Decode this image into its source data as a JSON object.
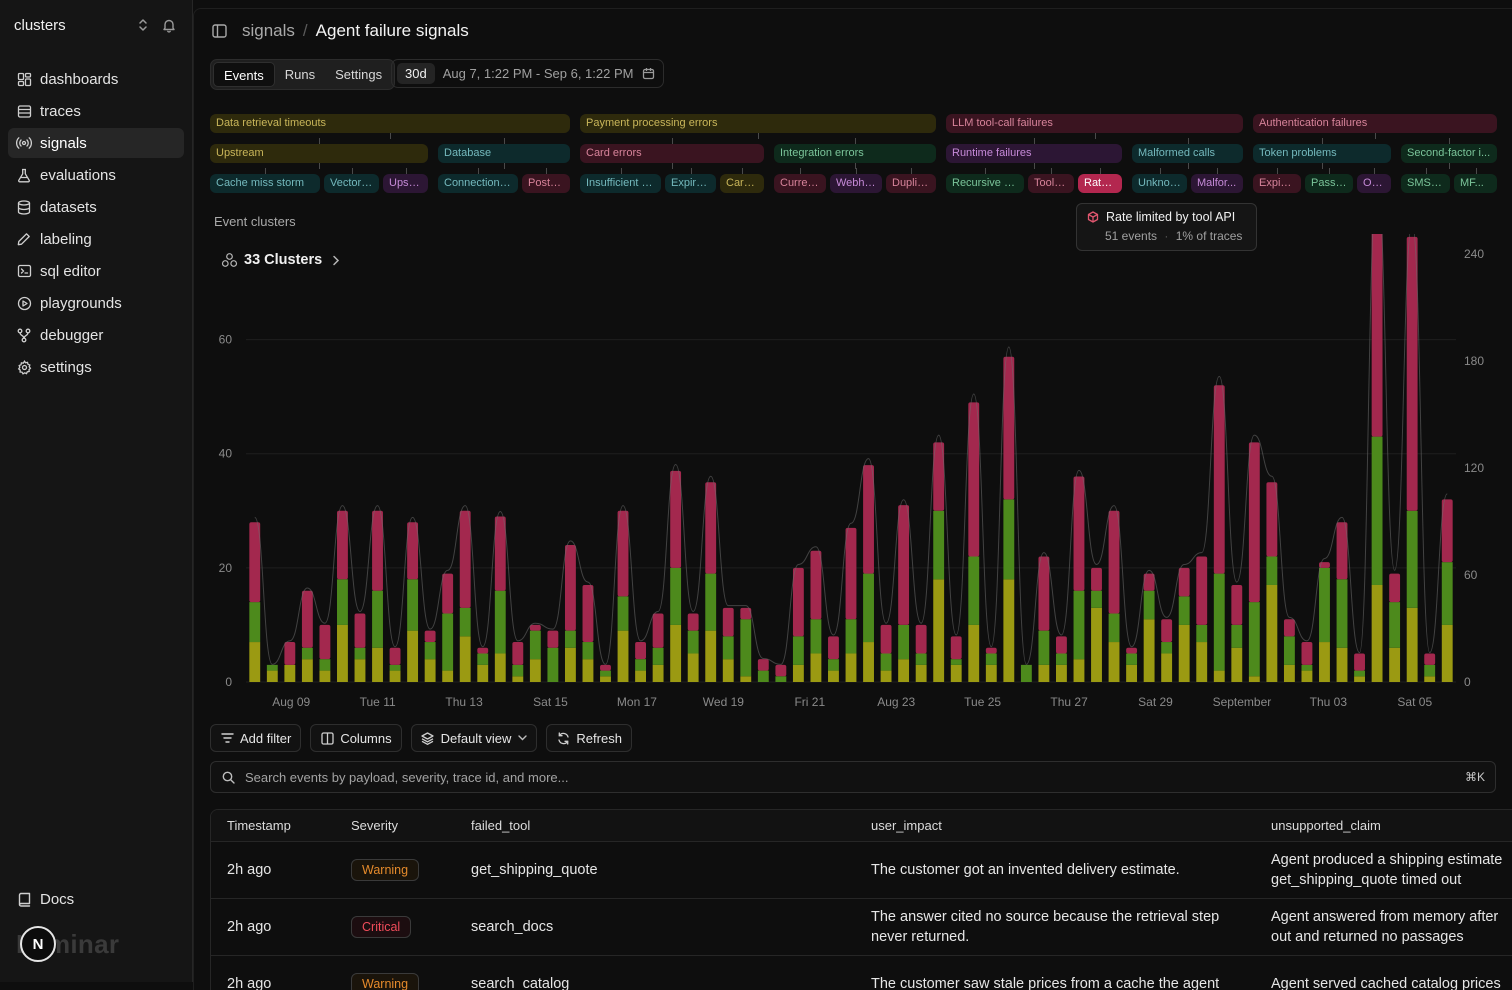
{
  "workspace": {
    "name": "clusters"
  },
  "sidebar": {
    "items": [
      {
        "key": "dashboards",
        "label": "dashboards",
        "icon": "dashboard-icon",
        "active": false
      },
      {
        "key": "traces",
        "label": "traces",
        "icon": "list-icon",
        "active": false
      },
      {
        "key": "signals",
        "label": "signals",
        "icon": "radio-icon",
        "active": true
      },
      {
        "key": "evaluations",
        "label": "evaluations",
        "icon": "flask-icon",
        "active": false
      },
      {
        "key": "datasets",
        "label": "datasets",
        "icon": "database-icon",
        "active": false
      },
      {
        "key": "labeling",
        "label": "labeling",
        "icon": "pencil-icon",
        "active": false
      },
      {
        "key": "sql-editor",
        "label": "sql editor",
        "icon": "terminal-icon",
        "active": false
      },
      {
        "key": "playgrounds",
        "label": "playgrounds",
        "icon": "play-circle-icon",
        "active": false
      },
      {
        "key": "debugger",
        "label": "debugger",
        "icon": "git-branch-icon",
        "active": false
      },
      {
        "key": "settings",
        "label": "settings",
        "icon": "gear-icon",
        "active": false
      }
    ],
    "docs": "Docs",
    "logo": "Laminar",
    "avatar": "N"
  },
  "breadcrumb": {
    "parent": "signals",
    "separator": "/",
    "current": "Agent failure signals"
  },
  "tabs": [
    {
      "label": "Events",
      "active": true
    },
    {
      "label": "Runs",
      "active": false
    },
    {
      "label": "Settings",
      "active": false
    }
  ],
  "date_range": {
    "preset": "30d",
    "label": "Aug 7, 1:22 PM - Sep 6, 1:22 PM"
  },
  "colors": {
    "olive": "#2e2a0c",
    "olive_text": "#c9b65a",
    "teal": "#0d2a2c",
    "teal_text": "#74b9bd",
    "green": "#0e2a1c",
    "green_text": "#7bc59a",
    "red": "#3a1420",
    "red_text": "#d7839a",
    "purple": "#2c1634",
    "purple_text": "#c68ad8",
    "series_top": "#a3284e",
    "series_mid": "#4d8a1c",
    "series_bottom": "#9b9a12"
  },
  "cluster_tree": {
    "top": [
      {
        "label": "Data retrieval timeouts",
        "color": "olive"
      },
      {
        "label": "Payment processing errors",
        "color": "olive"
      },
      {
        "label": "LLM tool-call failures",
        "color": "red"
      },
      {
        "label": "Authentication failures",
        "color": "red"
      }
    ],
    "mid": [
      {
        "label": "Upstream",
        "color": "olive"
      },
      {
        "label": "Database",
        "color": "teal"
      },
      {
        "label": "Card errors",
        "color": "red"
      },
      {
        "label": "Integration errors",
        "color": "green"
      },
      {
        "label": "Runtime failures",
        "color": "purple"
      },
      {
        "label": "Malformed calls",
        "color": "teal"
      },
      {
        "label": "Token problems",
        "color": "teal"
      },
      {
        "label": "Second-factor i...",
        "color": "green"
      }
    ],
    "leaf": [
      {
        "label": "Cache miss storm",
        "color": "teal"
      },
      {
        "label": "Vector s...",
        "color": "teal"
      },
      {
        "label": "Upstr...",
        "color": "purple"
      },
      {
        "label": "Connection p...",
        "color": "teal"
      },
      {
        "label": "Postgr...",
        "color": "red"
      },
      {
        "label": "Insufficient fu...",
        "color": "teal"
      },
      {
        "label": "Expire...",
        "color": "teal"
      },
      {
        "label": "Card ...",
        "color": "olive"
      },
      {
        "label": "Curren...",
        "color": "red"
      },
      {
        "label": "Webho...",
        "color": "purple"
      },
      {
        "label": "Duplic...",
        "color": "red"
      },
      {
        "label": "Recursive to...",
        "color": "green"
      },
      {
        "label": "Tool c...",
        "color": "red"
      },
      {
        "label": "Rate li...",
        "color": "selected"
      },
      {
        "label": "Unknow...",
        "color": "teal"
      },
      {
        "label": "Malfor...",
        "color": "purple"
      },
      {
        "label": "Expire...",
        "color": "red"
      },
      {
        "label": "Passw...",
        "color": "green"
      },
      {
        "label": "OA...",
        "color": "purple"
      },
      {
        "label": "SMS co...",
        "color": "green"
      },
      {
        "label": "MF...",
        "color": "green"
      }
    ]
  },
  "tooltip": {
    "title": "Rate limited by tool API",
    "events": "51 events",
    "separator": "·",
    "share": "1% of traces"
  },
  "section_title": "Event clusters",
  "clusters_label": "33 Clusters",
  "chart_data": {
    "type": "bar",
    "stacked": true,
    "x_tick_labels": [
      "Aug 09",
      "Tue 11",
      "Thu 13",
      "Sat 15",
      "Mon 17",
      "Wed 19",
      "Fri 21",
      "Aug 23",
      "Tue 25",
      "Thu 27",
      "Sat 29",
      "September",
      "Thu 03",
      "Sat 05"
    ],
    "ylim_left": [
      0,
      75
    ],
    "yticks_left": [
      0,
      20,
      40,
      60
    ],
    "ylim_right": [
      0,
      240
    ],
    "yticks_right": [
      0,
      60,
      120,
      180,
      240
    ],
    "series": [
      {
        "values": [
          7,
          2,
          3,
          4,
          2,
          10,
          4,
          6,
          2,
          9,
          4,
          2,
          8,
          3,
          5,
          1,
          4,
          0,
          6,
          4,
          1,
          9,
          2,
          3,
          10,
          5,
          9,
          4,
          1,
          0,
          0,
          3,
          5,
          2,
          5,
          7,
          2,
          4,
          3,
          18,
          3,
          10,
          3,
          18,
          0,
          3,
          3,
          4,
          13,
          7,
          3,
          11,
          5,
          10,
          7,
          2,
          6,
          1,
          17,
          3,
          2,
          7,
          6,
          1,
          17,
          6,
          13,
          1,
          10
        ]
      },
      {
        "values": [
          7,
          1,
          0,
          2,
          2,
          8,
          2,
          10,
          1,
          9,
          3,
          10,
          5,
          2,
          11,
          2,
          5,
          6,
          3,
          3,
          1,
          6,
          2,
          3,
          10,
          4,
          10,
          4,
          10,
          2,
          1,
          5,
          6,
          2,
          6,
          12,
          3,
          6,
          2,
          12,
          1,
          12,
          2,
          14,
          3,
          6,
          2,
          12,
          3,
          5,
          2,
          5,
          2,
          5,
          3,
          17,
          4,
          13,
          5,
          5,
          1,
          13,
          12,
          1,
          26,
          8,
          17,
          2,
          11
        ]
      },
      {
        "values": [
          14,
          0,
          4,
          10,
          6,
          12,
          6,
          14,
          3,
          10,
          2,
          7,
          17,
          1,
          13,
          4,
          1,
          3,
          15,
          10,
          1,
          15,
          3,
          6,
          17,
          3,
          16,
          5,
          2,
          2,
          2,
          12,
          12,
          4,
          16,
          19,
          5,
          21,
          5,
          12,
          4,
          27,
          1,
          25,
          0,
          13,
          3,
          20,
          4,
          18,
          1,
          3,
          4,
          5,
          12,
          33,
          7,
          28,
          13,
          3,
          4,
          1,
          10,
          3,
          42,
          5,
          48,
          2,
          11
        ]
      }
    ]
  },
  "toolbar": {
    "add_filter": "Add filter",
    "columns": "Columns",
    "default_view": "Default view",
    "refresh": "Refresh"
  },
  "search": {
    "placeholder": "Search events by payload, severity, trace id, and more...",
    "shortcut": "⌘K"
  },
  "table": {
    "columns": [
      "Timestamp",
      "Severity",
      "failed_tool",
      "user_impact",
      "unsupported_claim"
    ],
    "rows": [
      {
        "timestamp": "2h ago",
        "severity": "Warning",
        "failed_tool": "get_shipping_quote",
        "user_impact": "The customer got an invented delivery estimate.",
        "unsupported_claim": "Agent produced a shipping estimate get_shipping_quote timed out"
      },
      {
        "timestamp": "2h ago",
        "severity": "Critical",
        "failed_tool": "search_docs",
        "user_impact": "The answer cited no source because the retrieval step never returned.",
        "unsupported_claim": "Agent answered from memory after out and returned no passages"
      },
      {
        "timestamp": "2h ago",
        "severity": "Warning",
        "failed_tool": "search_catalog",
        "user_impact": "The customer saw stale prices from a cache the agent",
        "unsupported_claim": "Agent served cached catalog prices"
      }
    ]
  }
}
